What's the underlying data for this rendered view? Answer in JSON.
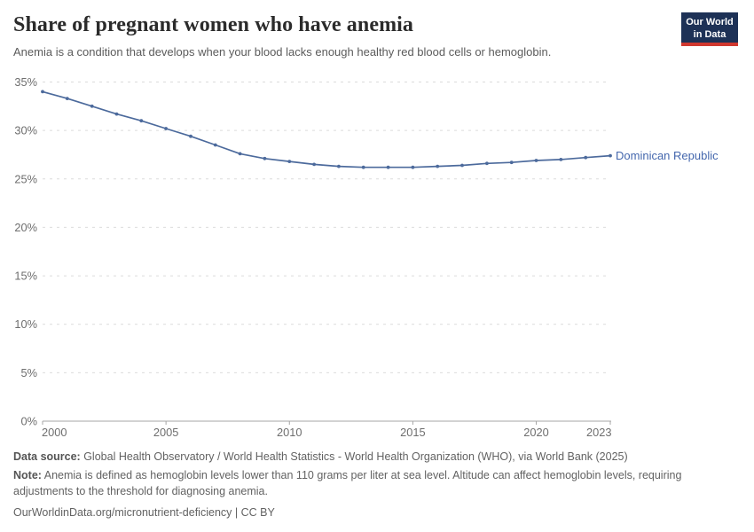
{
  "header": {
    "title": "Share of pregnant women who have anemia",
    "subtitle": "Anemia is a condition that develops when your blood lacks enough healthy red blood cells or hemoglobin.",
    "logo_line1": "Our World",
    "logo_line2": "in Data"
  },
  "chart_data": {
    "type": "line",
    "title": "Share of pregnant women who have anemia",
    "x": [
      2000,
      2001,
      2002,
      2003,
      2004,
      2005,
      2006,
      2007,
      2008,
      2009,
      2010,
      2011,
      2012,
      2013,
      2014,
      2015,
      2016,
      2017,
      2018,
      2019,
      2020,
      2021,
      2022,
      2023
    ],
    "series": [
      {
        "name": "Dominican Republic",
        "values": [
          34.0,
          33.3,
          32.5,
          31.7,
          31.0,
          30.2,
          29.4,
          28.5,
          27.6,
          27.1,
          26.8,
          26.5,
          26.3,
          26.2,
          26.2,
          26.2,
          26.3,
          26.4,
          26.6,
          26.7,
          26.9,
          27.0,
          27.2,
          27.4
        ],
        "color": "#4c6a9c",
        "label_color": "#4467ad"
      }
    ],
    "xlabel": "",
    "ylabel": "",
    "ylim": [
      0,
      35
    ],
    "yticks": [
      0,
      5,
      10,
      15,
      20,
      25,
      30,
      35
    ],
    "ytick_suffix": "%",
    "xticks": [
      2000,
      2005,
      2010,
      2015,
      2020,
      2023
    ],
    "grid": "dashed horizontal gridlines",
    "legend_position": "end-of-line label",
    "marker": "circle"
  },
  "colors": {
    "grid": "#dcdcdc",
    "axis": "#a5a5a5",
    "tick_text": "#6e6e6e",
    "logo_bg": "#1d3156",
    "logo_red": "#d0382f"
  },
  "footer": {
    "datasource_label": "Data source:",
    "datasource_text": " Global Health Observatory / World Health Statistics - World Health Organization (WHO), via World Bank (2025)",
    "note_label": "Note:",
    "note_text": " Anemia is defined as hemoglobin levels lower than 110 grams per liter at sea level. Altitude can affect hemoglobin levels, requiring adjustments to the threshold for diagnosing anemia.",
    "url_text": "OurWorldinData.org/micronutrient-deficiency | CC BY"
  }
}
